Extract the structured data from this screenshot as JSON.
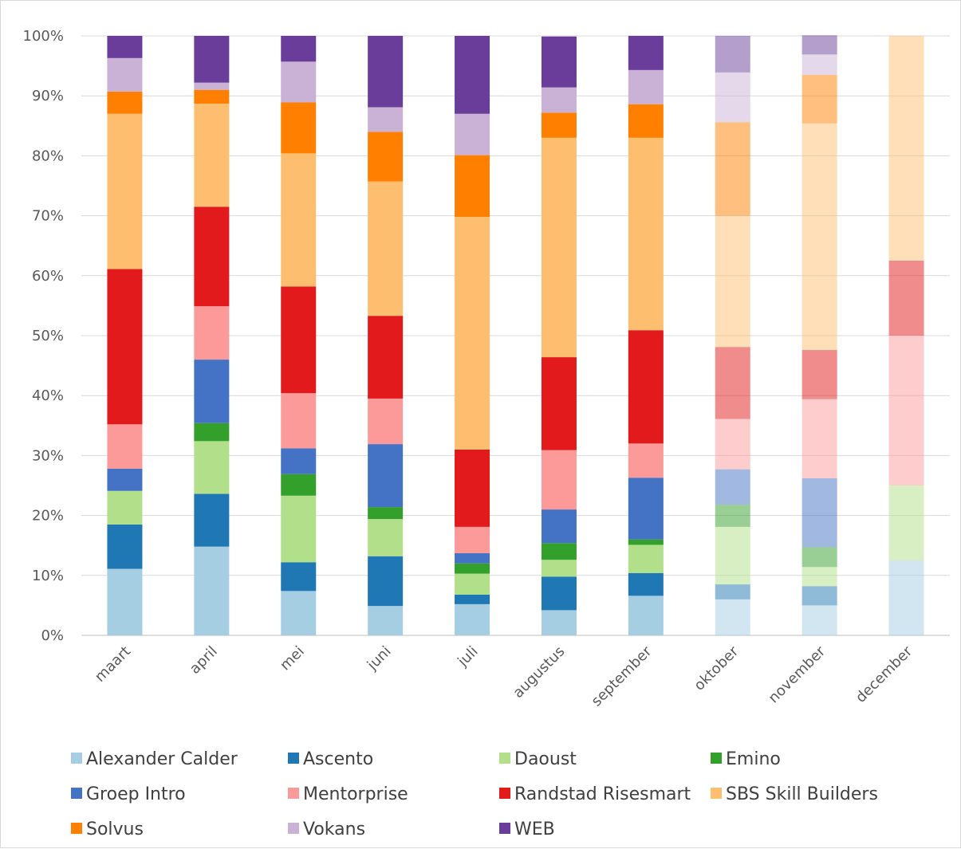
{
  "chart_data": {
    "type": "bar",
    "stacked": true,
    "normalized": true,
    "title": "",
    "xlabel": "",
    "ylabel": "",
    "ylim": [
      0,
      100
    ],
    "yticks": [
      "0%",
      "10%",
      "20%",
      "30%",
      "40%",
      "50%",
      "60%",
      "70%",
      "80%",
      "90%",
      "100%"
    ],
    "grid": true,
    "legend_position": "bottom",
    "categories": [
      "maart",
      "april",
      "mei",
      "juni",
      "juli",
      "augustus",
      "september",
      "oktober",
      "november",
      "december"
    ],
    "faded_categories": [
      "oktober",
      "november",
      "december"
    ],
    "series": [
      {
        "name": "Alexander Calder",
        "color": "#a6cee3",
        "values": [
          11.1,
          14.8,
          7.4,
          4.9,
          5.2,
          4.2,
          6.6,
          6.0,
          5.0,
          12.5
        ]
      },
      {
        "name": "Ascento",
        "color": "#1f78b4",
        "values": [
          7.4,
          8.8,
          4.8,
          8.3,
          1.6,
          5.6,
          3.8,
          2.5,
          3.2,
          0
        ]
      },
      {
        "name": "Daoust",
        "color": "#b2df8a",
        "values": [
          5.6,
          8.8,
          11.1,
          6.2,
          3.5,
          2.8,
          4.7,
          9.6,
          3.2,
          12.5
        ]
      },
      {
        "name": "Emino",
        "color": "#33a02c",
        "values": [
          0,
          3.0,
          3.6,
          2.0,
          1.7,
          2.8,
          0.9,
          3.7,
          3.3,
          0
        ]
      },
      {
        "name": "Groep Intro",
        "color": "#4472c4",
        "values": [
          3.7,
          10.6,
          4.3,
          10.5,
          1.7,
          5.6,
          10.3,
          5.9,
          11.5,
          0
        ]
      },
      {
        "name": "Mentorprise",
        "color": "#fb9a99",
        "values": [
          7.4,
          8.9,
          9.2,
          7.6,
          4.4,
          9.9,
          5.7,
          8.4,
          13.2,
          25.0
        ]
      },
      {
        "name": "Randstad Risesmart",
        "color": "#e31a1c",
        "values": [
          25.9,
          16.6,
          17.8,
          13.8,
          12.9,
          15.5,
          18.9,
          12.0,
          8.2,
          12.5
        ]
      },
      {
        "name": "SBS Skill Builders",
        "color": "#fdbf6f",
        "values": [
          25.9,
          17.2,
          22.2,
          22.4,
          38.8,
          36.6,
          32.1,
          21.9,
          37.8,
          37.5
        ]
      },
      {
        "name": "Solvus",
        "color": "#ff7f00",
        "values": [
          3.7,
          2.3,
          8.5,
          8.3,
          10.3,
          4.2,
          5.6,
          15.6,
          8.1,
          0
        ]
      },
      {
        "name": "Vokans",
        "color": "#cab2d6",
        "values": [
          5.6,
          1.2,
          6.8,
          4.1,
          6.9,
          4.2,
          5.7,
          8.3,
          3.4,
          0
        ]
      },
      {
        "name": "WEB",
        "color": "#6a3d9a",
        "values": [
          3.7,
          7.8,
          4.3,
          11.9,
          13.0,
          8.5,
          5.7,
          6.1,
          3.2,
          0
        ]
      }
    ]
  }
}
